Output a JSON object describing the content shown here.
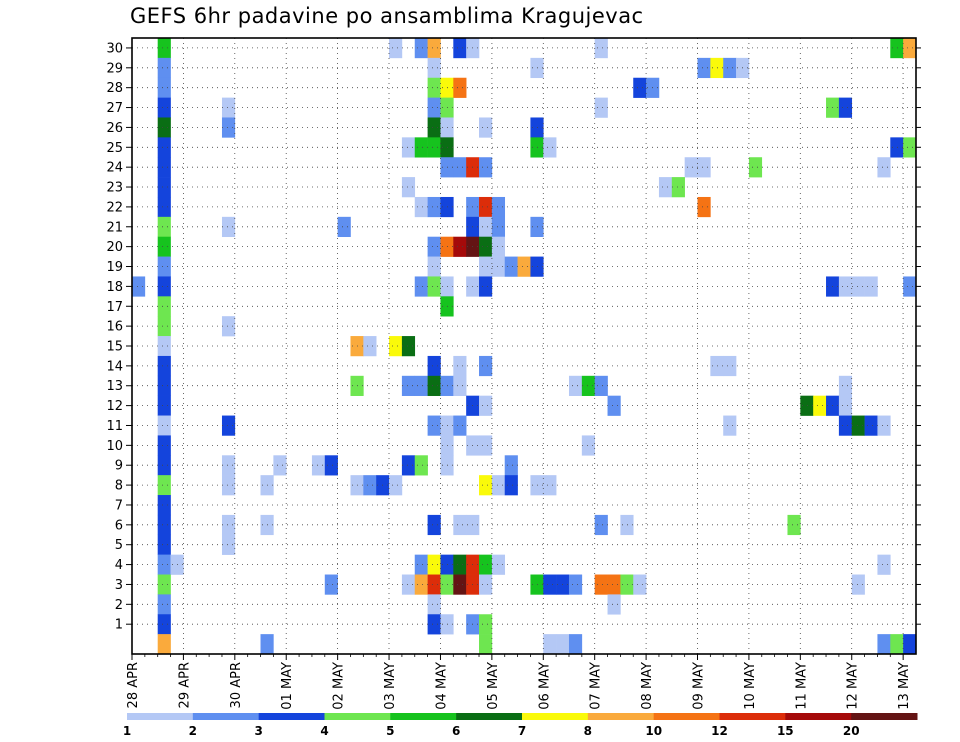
{
  "title": "GEFS 6hr padavine po ansamblima Kragujevac",
  "chart_data": {
    "type": "heatmap",
    "title": "GEFS 6hr padavine po ansamblima Kragujevac",
    "ylim": [
      0,
      30
    ],
    "y_ticks": [
      1,
      2,
      3,
      4,
      5,
      6,
      7,
      8,
      9,
      10,
      11,
      12,
      13,
      14,
      15,
      16,
      17,
      18,
      19,
      20,
      21,
      22,
      23,
      24,
      25,
      26,
      27,
      28,
      29,
      30
    ],
    "x_ticks": [
      "28 APR",
      "29 APR",
      "30 APR",
      "01 MAY",
      "02 MAY",
      "03 MAY",
      "04 MAY",
      "05 MAY",
      "06 MAY",
      "07 MAY",
      "08 MAY",
      "09 MAY",
      "10 MAY",
      "11 MAY",
      "12 MAY",
      "13 MAY"
    ],
    "steps_per_day": 4,
    "n_steps": 61,
    "grid": true,
    "colorbar": {
      "position": "bottom",
      "labels": [
        "1",
        "2",
        "3",
        "4",
        "5",
        "6",
        "7",
        "8",
        "10",
        "12",
        "15",
        "20"
      ],
      "colors": [
        "#b4c8f5",
        "#5f8ff0",
        "#1444dc",
        "#6ee650",
        "#16c31e",
        "#0a6e14",
        "#fafa0a",
        "#faaa3c",
        "#f57314",
        "#dc2d0a",
        "#a50a0a",
        "#641414"
      ]
    },
    "cells": [
      [
        30,
        2,
        4
      ],
      [
        30,
        20,
        0
      ],
      [
        30,
        22,
        1
      ],
      [
        30,
        23,
        7
      ],
      [
        30,
        25,
        2
      ],
      [
        30,
        26,
        0
      ],
      [
        30,
        36,
        0
      ],
      [
        30,
        59,
        4
      ],
      [
        30,
        60,
        7
      ],
      [
        29,
        2,
        1
      ],
      [
        29,
        23,
        0
      ],
      [
        29,
        31,
        0
      ],
      [
        29,
        44,
        1
      ],
      [
        29,
        45,
        6
      ],
      [
        29,
        46,
        1
      ],
      [
        29,
        47,
        0
      ],
      [
        28,
        2,
        1
      ],
      [
        28,
        23,
        3
      ],
      [
        28,
        24,
        6
      ],
      [
        28,
        25,
        8
      ],
      [
        28,
        39,
        2
      ],
      [
        28,
        40,
        1
      ],
      [
        27,
        2,
        2
      ],
      [
        27,
        7,
        0
      ],
      [
        27,
        23,
        1
      ],
      [
        27,
        24,
        3
      ],
      [
        27,
        36,
        0
      ],
      [
        27,
        54,
        3
      ],
      [
        27,
        55,
        2
      ],
      [
        26,
        2,
        5
      ],
      [
        26,
        7,
        1
      ],
      [
        26,
        23,
        5
      ],
      [
        26,
        24,
        0
      ],
      [
        26,
        27,
        0
      ],
      [
        26,
        31,
        2
      ],
      [
        25,
        2,
        2
      ],
      [
        25,
        21,
        0
      ],
      [
        25,
        22,
        4
      ],
      [
        25,
        23,
        4
      ],
      [
        25,
        24,
        5
      ],
      [
        25,
        31,
        4
      ],
      [
        25,
        32,
        0
      ],
      [
        25,
        59,
        2
      ],
      [
        25,
        60,
        3
      ],
      [
        24,
        2,
        2
      ],
      [
        24,
        24,
        1
      ],
      [
        24,
        25,
        1
      ],
      [
        24,
        26,
        9
      ],
      [
        24,
        27,
        1
      ],
      [
        24,
        43,
        0
      ],
      [
        24,
        44,
        0
      ],
      [
        24,
        48,
        3
      ],
      [
        24,
        58,
        0
      ],
      [
        23,
        2,
        2
      ],
      [
        23,
        21,
        0
      ],
      [
        23,
        41,
        0
      ],
      [
        23,
        42,
        3
      ],
      [
        22,
        2,
        2
      ],
      [
        22,
        22,
        0
      ],
      [
        22,
        23,
        1
      ],
      [
        22,
        24,
        2
      ],
      [
        22,
        26,
        1
      ],
      [
        22,
        27,
        9
      ],
      [
        22,
        28,
        1
      ],
      [
        22,
        44,
        8
      ],
      [
        21,
        2,
        3
      ],
      [
        21,
        7,
        0
      ],
      [
        21,
        16,
        1
      ],
      [
        21,
        26,
        2
      ],
      [
        21,
        27,
        0
      ],
      [
        21,
        28,
        1
      ],
      [
        21,
        31,
        1
      ],
      [
        20,
        2,
        4
      ],
      [
        20,
        23,
        1
      ],
      [
        20,
        24,
        8
      ],
      [
        20,
        25,
        10
      ],
      [
        20,
        26,
        11
      ],
      [
        20,
        27,
        5
      ],
      [
        20,
        28,
        0
      ],
      [
        19,
        2,
        1
      ],
      [
        19,
        23,
        0
      ],
      [
        19,
        27,
        0
      ],
      [
        19,
        28,
        0
      ],
      [
        19,
        29,
        1
      ],
      [
        19,
        30,
        7
      ],
      [
        19,
        31,
        2
      ],
      [
        18,
        0,
        1
      ],
      [
        18,
        2,
        2
      ],
      [
        18,
        22,
        1
      ],
      [
        18,
        23,
        3
      ],
      [
        18,
        24,
        0
      ],
      [
        18,
        26,
        0
      ],
      [
        18,
        27,
        2
      ],
      [
        18,
        54,
        2
      ],
      [
        18,
        55,
        0
      ],
      [
        18,
        56,
        0
      ],
      [
        18,
        57,
        0
      ],
      [
        18,
        60,
        1
      ],
      [
        17,
        2,
        3
      ],
      [
        17,
        24,
        4
      ],
      [
        16,
        2,
        3
      ],
      [
        16,
        7,
        0
      ],
      [
        15,
        2,
        0
      ],
      [
        15,
        17,
        7
      ],
      [
        15,
        18,
        0
      ],
      [
        15,
        20,
        6
      ],
      [
        15,
        21,
        5
      ],
      [
        14,
        2,
        2
      ],
      [
        14,
        23,
        2
      ],
      [
        14,
        25,
        0
      ],
      [
        14,
        27,
        1
      ],
      [
        14,
        45,
        0
      ],
      [
        14,
        46,
        0
      ],
      [
        13,
        2,
        2
      ],
      [
        13,
        17,
        3
      ],
      [
        13,
        21,
        1
      ],
      [
        13,
        22,
        1
      ],
      [
        13,
        23,
        5
      ],
      [
        13,
        24,
        1
      ],
      [
        13,
        25,
        0
      ],
      [
        13,
        34,
        0
      ],
      [
        13,
        35,
        4
      ],
      [
        13,
        36,
        1
      ],
      [
        13,
        55,
        0
      ],
      [
        12,
        2,
        2
      ],
      [
        12,
        26,
        2
      ],
      [
        12,
        27,
        0
      ],
      [
        12,
        37,
        1
      ],
      [
        12,
        52,
        5
      ],
      [
        12,
        53,
        6
      ],
      [
        12,
        54,
        2
      ],
      [
        12,
        55,
        0
      ],
      [
        11,
        2,
        0
      ],
      [
        11,
        7,
        2
      ],
      [
        11,
        23,
        1
      ],
      [
        11,
        24,
        0
      ],
      [
        11,
        25,
        1
      ],
      [
        11,
        46,
        0
      ],
      [
        11,
        55,
        2
      ],
      [
        11,
        56,
        5
      ],
      [
        11,
        57,
        2
      ],
      [
        11,
        58,
        0
      ],
      [
        10,
        2,
        2
      ],
      [
        10,
        24,
        0
      ],
      [
        10,
        26,
        0
      ],
      [
        10,
        27,
        0
      ],
      [
        10,
        35,
        0
      ],
      [
        9,
        2,
        2
      ],
      [
        9,
        7,
        0
      ],
      [
        9,
        11,
        0
      ],
      [
        9,
        14,
        0
      ],
      [
        9,
        15,
        2
      ],
      [
        9,
        21,
        2
      ],
      [
        9,
        22,
        3
      ],
      [
        9,
        24,
        0
      ],
      [
        9,
        29,
        1
      ],
      [
        8,
        2,
        3
      ],
      [
        8,
        7,
        0
      ],
      [
        8,
        10,
        0
      ],
      [
        8,
        17,
        0
      ],
      [
        8,
        18,
        1
      ],
      [
        8,
        19,
        2
      ],
      [
        8,
        20,
        0
      ],
      [
        8,
        27,
        6
      ],
      [
        8,
        28,
        0
      ],
      [
        8,
        29,
        2
      ],
      [
        8,
        31,
        0
      ],
      [
        8,
        32,
        0
      ],
      [
        7,
        2,
        2
      ],
      [
        6,
        2,
        2
      ],
      [
        6,
        7,
        0
      ],
      [
        6,
        10,
        0
      ],
      [
        6,
        23,
        2
      ],
      [
        6,
        25,
        0
      ],
      [
        6,
        26,
        0
      ],
      [
        6,
        36,
        1
      ],
      [
        6,
        38,
        0
      ],
      [
        6,
        51,
        3
      ],
      [
        5,
        2,
        2
      ],
      [
        5,
        7,
        0
      ],
      [
        4,
        2,
        1
      ],
      [
        4,
        3,
        0
      ],
      [
        4,
        22,
        1
      ],
      [
        4,
        23,
        6
      ],
      [
        4,
        24,
        2
      ],
      [
        4,
        25,
        5
      ],
      [
        4,
        26,
        9
      ],
      [
        4,
        27,
        4
      ],
      [
        4,
        28,
        0
      ],
      [
        4,
        58,
        0
      ],
      [
        3,
        2,
        3
      ],
      [
        3,
        15,
        1
      ],
      [
        3,
        21,
        0
      ],
      [
        3,
        22,
        7
      ],
      [
        3,
        23,
        9
      ],
      [
        3,
        24,
        3
      ],
      [
        3,
        25,
        11
      ],
      [
        3,
        26,
        9
      ],
      [
        3,
        27,
        0
      ],
      [
        3,
        31,
        4
      ],
      [
        3,
        32,
        2
      ],
      [
        3,
        33,
        2
      ],
      [
        3,
        34,
        1
      ],
      [
        3,
        36,
        8
      ],
      [
        3,
        37,
        8
      ],
      [
        3,
        38,
        3
      ],
      [
        3,
        39,
        0
      ],
      [
        3,
        56,
        0
      ],
      [
        2,
        2,
        1
      ],
      [
        2,
        23,
        0
      ],
      [
        2,
        37,
        0
      ],
      [
        1,
        2,
        2
      ],
      [
        1,
        23,
        2
      ],
      [
        1,
        24,
        0
      ],
      [
        1,
        26,
        1
      ],
      [
        1,
        27,
        3
      ],
      [
        0,
        2,
        7
      ],
      [
        0,
        10,
        1
      ],
      [
        0,
        27,
        3
      ],
      [
        0,
        32,
        0
      ],
      [
        0,
        33,
        0
      ],
      [
        0,
        34,
        1
      ],
      [
        0,
        58,
        1
      ],
      [
        0,
        59,
        3
      ],
      [
        0,
        60,
        2
      ]
    ]
  }
}
